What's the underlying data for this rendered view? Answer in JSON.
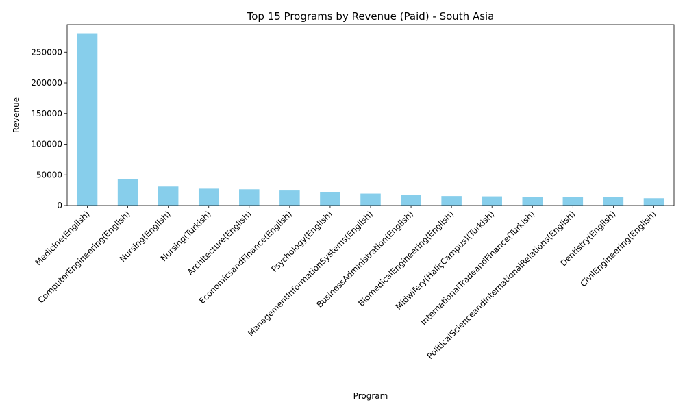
{
  "chart_data": {
    "type": "bar",
    "title": "Top 15 Programs by Revenue (Paid) - South Asia",
    "xlabel": "Program",
    "ylabel": "Revenue",
    "ylim": [
      0,
      295000
    ],
    "yticks": [
      0,
      50000,
      100000,
      150000,
      200000,
      250000
    ],
    "grid": false,
    "bar_color": "#87ceeb",
    "categories": [
      "Medicine(English)",
      "ComputerEngineering(English)",
      "Nursing(English)",
      "Nursing(Turkish)",
      "Architecture(English)",
      "EconomicsandFinance(English)",
      "Psychology(English)",
      "ManagementInformationSystems(English)",
      "BusinessAdministration(English)",
      "BiomedicalEngineering(English)",
      "Midwifery(HaliçCampus)(Turkish)",
      "InternationalTradeandFinance(Turkish)",
      "PoliticalScienceandInternationalRelations(English)",
      "Dentistry(English)",
      "CivilEngineering(English)"
    ],
    "values": [
      281000,
      43500,
      31000,
      27500,
      26500,
      24500,
      22000,
      19500,
      17500,
      15500,
      15000,
      14500,
      14200,
      14000,
      12000
    ]
  }
}
